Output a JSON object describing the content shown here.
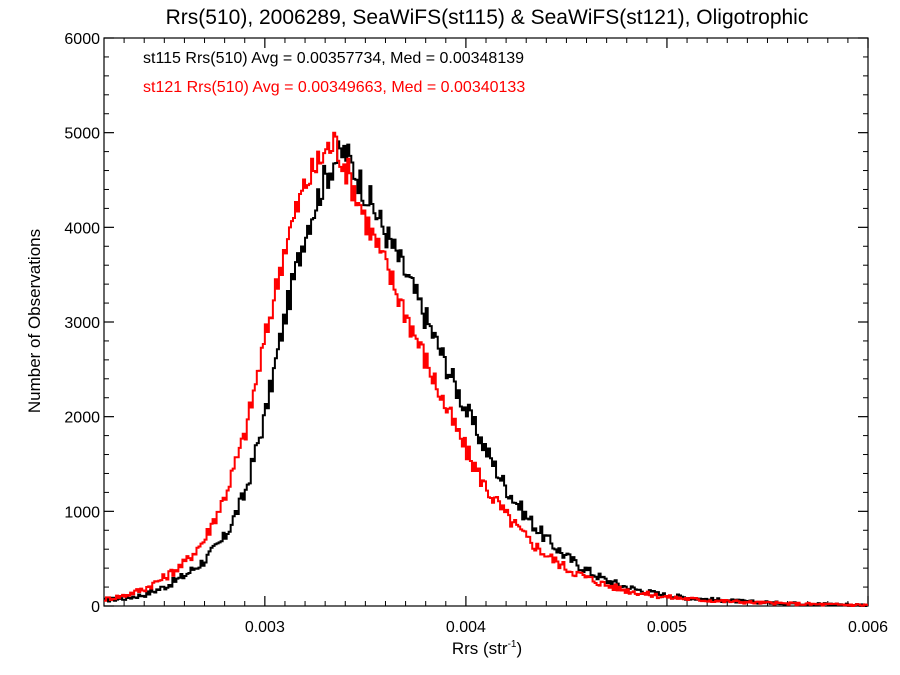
{
  "chart_data": {
    "type": "histogram-step",
    "title": "Rrs(510), 2006289, SeaWiFS(st115) & SeaWiFS(st121), Oligotrophic",
    "xlabel_main": "Rrs (str",
    "xlabel_sup": "-1",
    "xlabel_close": ")",
    "ylabel": "Number of Observations",
    "xlim": [
      0.0022,
      0.006
    ],
    "ylim": [
      0,
      6000
    ],
    "x_ticks": [
      0.003,
      0.004,
      0.005,
      0.006
    ],
    "x_tick_labels": [
      "0.003",
      "0.004",
      "0.005",
      "0.006"
    ],
    "y_ticks": [
      0,
      1000,
      2000,
      3000,
      4000,
      5000,
      6000
    ],
    "y_tick_labels": [
      "0",
      "1000",
      "2000",
      "3000",
      "4000",
      "5000",
      "6000"
    ],
    "grid": false,
    "legend_position": "top-left",
    "bin_width": 1e-05,
    "series": [
      {
        "name": "st115",
        "label": "st115 Rrs(510) Avg = 0.00357734, Med = 0.00348139",
        "color": "#000000",
        "x": [
          0.0022,
          0.0023,
          0.0024,
          0.0025,
          0.0026,
          0.0027,
          0.0028,
          0.0029,
          0.003,
          0.0031,
          0.0032,
          0.0033,
          0.00335,
          0.0034,
          0.0035,
          0.0036,
          0.0037,
          0.0038,
          0.0039,
          0.004,
          0.0041,
          0.0042,
          0.0043,
          0.0044,
          0.0045,
          0.0046,
          0.0047,
          0.0048,
          0.0049,
          0.005,
          0.0052,
          0.0054,
          0.0056,
          0.0058,
          0.006
        ],
        "y": [
          60,
          80,
          120,
          200,
          320,
          480,
          720,
          1180,
          2000,
          3050,
          3950,
          4520,
          4720,
          4800,
          4380,
          3950,
          3520,
          3050,
          2560,
          2080,
          1650,
          1250,
          950,
          710,
          520,
          380,
          270,
          200,
          150,
          110,
          70,
          45,
          30,
          20,
          10
        ]
      },
      {
        "name": "st121",
        "label": "st121 Rrs(510) Avg = 0.00349663, Med = 0.00340133",
        "color": "#ff0000",
        "x": [
          0.0022,
          0.0023,
          0.0024,
          0.0025,
          0.0026,
          0.0027,
          0.0028,
          0.0029,
          0.003,
          0.0031,
          0.0032,
          0.0033,
          0.00335,
          0.0034,
          0.0035,
          0.0036,
          0.0037,
          0.0038,
          0.0039,
          0.004,
          0.0041,
          0.0042,
          0.0043,
          0.0044,
          0.0045,
          0.0046,
          0.0047,
          0.0048,
          0.0049,
          0.005,
          0.0052,
          0.0054,
          0.0056,
          0.0058,
          0.006
        ],
        "y": [
          70,
          110,
          180,
          300,
          450,
          700,
          1150,
          1800,
          2800,
          3800,
          4450,
          4800,
          4900,
          4650,
          4100,
          3600,
          3100,
          2600,
          2100,
          1650,
          1250,
          960,
          720,
          540,
          400,
          300,
          220,
          165,
          125,
          95,
          60,
          40,
          25,
          15,
          10
        ]
      }
    ]
  }
}
